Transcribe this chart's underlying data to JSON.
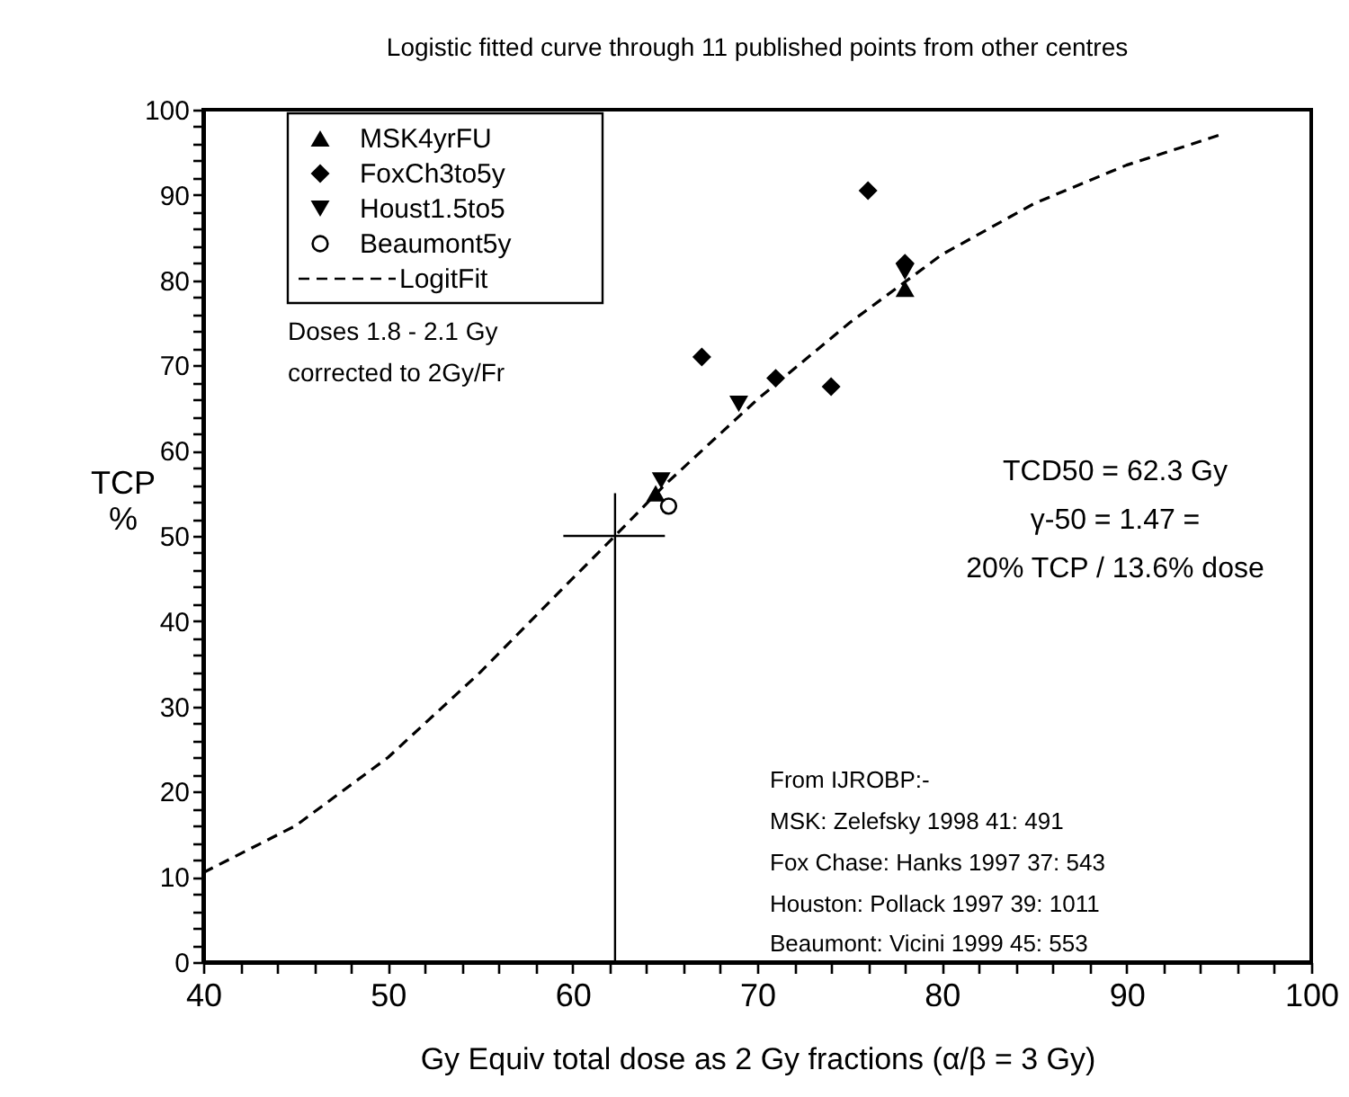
{
  "chart_data": {
    "type": "scatter",
    "title": "Logistic fitted curve through 11 published points from other centres",
    "xlabel": "Gy  Equiv  total  dose as  2 Gy  fractions  (α/β = 3 Gy)",
    "ylabel": "TCP\n%",
    "xlim": [
      40,
      100
    ],
    "ylim": [
      0,
      100
    ],
    "xticks": [
      40,
      {
        "value": 42,
        "label": null
      },
      {
        "value": 44,
        "label": null
      },
      {
        "value": 46,
        "label": null
      },
      {
        "value": 48,
        "label": null
      },
      50,
      {
        "value": 52,
        "label": null
      },
      {
        "value": 54,
        "label": null
      },
      {
        "value": 56,
        "label": null
      },
      {
        "value": 58,
        "label": null
      },
      60,
      {
        "value": 62,
        "label": null
      },
      {
        "value": 64,
        "label": null
      },
      {
        "value": 66,
        "label": null
      },
      {
        "value": 68,
        "label": null
      },
      70,
      {
        "value": 72,
        "label": null
      },
      {
        "value": 74,
        "label": null
      },
      {
        "value": 76,
        "label": null
      },
      {
        "value": 78,
        "label": null
      },
      80,
      {
        "value": 82,
        "label": null
      },
      {
        "value": 84,
        "label": null
      },
      {
        "value": 86,
        "label": null
      },
      {
        "value": 88,
        "label": null
      },
      90,
      {
        "value": 92,
        "label": null
      },
      {
        "value": 94,
        "label": null
      },
      {
        "value": 96,
        "label": null
      },
      {
        "value": 98,
        "label": null
      },
      100
    ],
    "yticks": [
      0,
      {
        "value": 2,
        "label": null
      },
      {
        "value": 4,
        "label": null
      },
      {
        "value": 6,
        "label": null
      },
      {
        "value": 8,
        "label": null
      },
      10,
      {
        "value": 12,
        "label": null
      },
      {
        "value": 14,
        "label": null
      },
      {
        "value": 16,
        "label": null
      },
      {
        "value": 18,
        "label": null
      },
      20,
      {
        "value": 22,
        "label": null
      },
      {
        "value": 24,
        "label": null
      },
      {
        "value": 26,
        "label": null
      },
      {
        "value": 28,
        "label": null
      },
      30,
      {
        "value": 32,
        "label": null
      },
      {
        "value": 34,
        "label": null
      },
      {
        "value": 36,
        "label": null
      },
      {
        "value": 38,
        "label": null
      },
      40,
      {
        "value": 42,
        "label": null
      },
      {
        "value": 44,
        "label": null
      },
      {
        "value": 46,
        "label": null
      },
      {
        "value": 48,
        "label": null
      },
      50,
      {
        "value": 52,
        "label": null
      },
      {
        "value": 54,
        "label": null
      },
      {
        "value": 56,
        "label": null
      },
      {
        "value": 58,
        "label": null
      },
      60,
      {
        "value": 62,
        "label": null
      },
      {
        "value": 64,
        "label": null
      },
      {
        "value": 66,
        "label": null
      },
      {
        "value": 68,
        "label": null
      },
      70,
      {
        "value": 72,
        "label": null
      },
      {
        "value": 74,
        "label": null
      },
      {
        "value": 76,
        "label": null
      },
      {
        "value": 78,
        "label": null
      },
      80,
      {
        "value": 82,
        "label": null
      },
      {
        "value": 84,
        "label": null
      },
      {
        "value": 86,
        "label": null
      },
      {
        "value": 88,
        "label": null
      },
      90,
      {
        "value": 92,
        "label": null
      },
      {
        "value": 94,
        "label": null
      },
      {
        "value": 96,
        "label": null
      },
      {
        "value": 98,
        "label": null
      },
      100
    ],
    "grid": false,
    "legend": "top left",
    "series": [
      {
        "name": "MSK4yrFU",
        "type": "scatter",
        "marker": "triangle",
        "color": "#000000",
        "x": [
          64.5,
          78
        ],
        "values": [
          55,
          79
        ]
      },
      {
        "name": "FoxCh3to5y",
        "type": "scatter",
        "marker": "diamond",
        "color": "#000000",
        "x": [
          67,
          71,
          74,
          76,
          78
        ],
        "values": [
          71,
          68.5,
          67.5,
          90.5,
          82
        ]
      },
      {
        "name": "Houst1.5to5",
        "type": "scatter",
        "marker": "triangle-down",
        "color": "#000000",
        "x": [
          64.8,
          69,
          78
        ],
        "values": [
          56.5,
          65.5,
          81
        ]
      },
      {
        "name": "Beaumont5y",
        "type": "scatter",
        "marker": "circle",
        "color": "#000000",
        "x": [
          65.2
        ],
        "values": [
          53.5
        ]
      },
      {
        "name": "LogitFit",
        "type": "line",
        "line_style": "dashed",
        "color": "#000000",
        "x": [
          40,
          45,
          50,
          55,
          60,
          62.3,
          65,
          70,
          75,
          80,
          85,
          90,
          95
        ],
        "values": [
          10.5,
          16,
          24,
          34,
          45,
          50,
          56,
          66,
          75,
          83,
          89,
          93.5,
          97
        ]
      },
      {
        "type": "line",
        "line_style": "solid",
        "color": "#000000",
        "x": [
          62.3,
          62.3
        ],
        "values": [
          0,
          55
        ]
      },
      {
        "type": "line",
        "line_style": "solid",
        "color": "#000000",
        "x": [
          59.5,
          65
        ],
        "values": [
          50,
          50
        ]
      }
    ],
    "annotations": [
      "Doses 1.8 - 2.1 Gy",
      "corrected to 2Gy/Fr",
      "TCD50 = 62.3 Gy",
      "γ-50 = 1.47 =",
      "20% TCP / 13.6% dose",
      "From IJROBP:-",
      "MSK: Zelefsky 1998 41: 491",
      "Fox Chase: Hanks 1997 37: 543",
      "Houston: Pollack 1997 39: 1011",
      "Beaumont: Vicini 1999 45: 553"
    ]
  }
}
